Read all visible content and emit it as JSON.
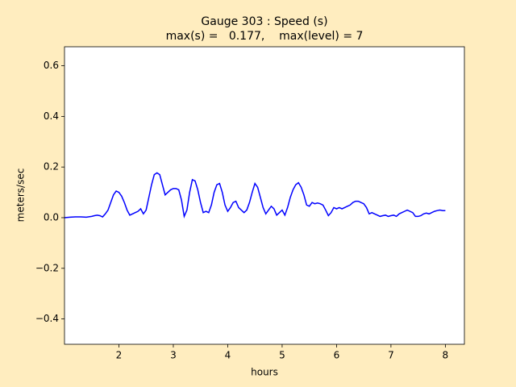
{
  "chart_data": {
    "type": "line",
    "title": "Gauge 303 : Speed (s)",
    "subtitle": "max(s) =   0.177,    max(level) = 7",
    "xlabel": "hours",
    "ylabel": "meters/sec",
    "xlim": [
      1.0,
      8.35
    ],
    "ylim": [
      -0.5,
      0.675
    ],
    "xticks": [
      2,
      3,
      4,
      5,
      6,
      7,
      8
    ],
    "yticks": [
      {
        "value": -0.4,
        "label": "−0.4"
      },
      {
        "value": -0.2,
        "label": "−0.2"
      },
      {
        "value": 0,
        "label": "0.0"
      },
      0.2,
      0.4,
      0.6
    ],
    "grid": false,
    "series": [
      {
        "name": "s",
        "color": "#0000ff",
        "x": [
          1.0,
          1.1,
          1.2,
          1.3,
          1.4,
          1.5,
          1.55,
          1.6,
          1.65,
          1.7,
          1.75,
          1.8,
          1.85,
          1.9,
          1.95,
          2.0,
          2.05,
          2.1,
          2.15,
          2.2,
          2.25,
          2.3,
          2.35,
          2.4,
          2.45,
          2.5,
          2.55,
          2.6,
          2.65,
          2.7,
          2.75,
          2.8,
          2.85,
          2.9,
          2.95,
          3.0,
          3.05,
          3.1,
          3.15,
          3.2,
          3.25,
          3.3,
          3.35,
          3.4,
          3.45,
          3.5,
          3.55,
          3.6,
          3.65,
          3.7,
          3.75,
          3.8,
          3.85,
          3.9,
          3.95,
          4.0,
          4.05,
          4.1,
          4.15,
          4.2,
          4.25,
          4.3,
          4.35,
          4.4,
          4.45,
          4.5,
          4.55,
          4.6,
          4.65,
          4.7,
          4.75,
          4.8,
          4.85,
          4.9,
          4.95,
          5.0,
          5.05,
          5.1,
          5.15,
          5.2,
          5.25,
          5.3,
          5.35,
          5.4,
          5.45,
          5.5,
          5.55,
          5.6,
          5.65,
          5.7,
          5.75,
          5.8,
          5.85,
          5.9,
          5.95,
          6.0,
          6.05,
          6.1,
          6.15,
          6.2,
          6.25,
          6.3,
          6.35,
          6.4,
          6.45,
          6.5,
          6.55,
          6.6,
          6.65,
          6.7,
          6.75,
          6.8,
          6.85,
          6.9,
          6.95,
          7.0,
          7.05,
          7.1,
          7.15,
          7.2,
          7.25,
          7.3,
          7.35,
          7.4,
          7.45,
          7.5,
          7.55,
          7.6,
          7.65,
          7.7,
          7.75,
          7.8,
          7.85,
          7.9,
          7.95,
          8.0
        ],
        "values": [
          0.0,
          0.002,
          0.003,
          0.003,
          0.002,
          0.005,
          0.008,
          0.01,
          0.008,
          0.003,
          0.015,
          0.03,
          0.06,
          0.09,
          0.105,
          0.1,
          0.085,
          0.06,
          0.03,
          0.01,
          0.015,
          0.02,
          0.025,
          0.035,
          0.015,
          0.03,
          0.08,
          0.13,
          0.17,
          0.177,
          0.17,
          0.13,
          0.09,
          0.1,
          0.11,
          0.115,
          0.115,
          0.11,
          0.07,
          0.005,
          0.03,
          0.1,
          0.15,
          0.145,
          0.11,
          0.06,
          0.02,
          0.025,
          0.02,
          0.05,
          0.1,
          0.13,
          0.135,
          0.1,
          0.05,
          0.025,
          0.04,
          0.06,
          0.065,
          0.04,
          0.03,
          0.02,
          0.03,
          0.06,
          0.1,
          0.135,
          0.12,
          0.08,
          0.04,
          0.015,
          0.03,
          0.045,
          0.035,
          0.01,
          0.02,
          0.03,
          0.01,
          0.04,
          0.08,
          0.11,
          0.13,
          0.138,
          0.12,
          0.09,
          0.05,
          0.045,
          0.06,
          0.055,
          0.058,
          0.055,
          0.05,
          0.03,
          0.008,
          0.02,
          0.04,
          0.035,
          0.04,
          0.035,
          0.04,
          0.045,
          0.05,
          0.06,
          0.065,
          0.065,
          0.06,
          0.055,
          0.04,
          0.015,
          0.02,
          0.015,
          0.01,
          0.005,
          0.008,
          0.01,
          0.005,
          0.008,
          0.01,
          0.005,
          0.015,
          0.02,
          0.025,
          0.03,
          0.025,
          0.02,
          0.005,
          0.005,
          0.008,
          0.015,
          0.018,
          0.015,
          0.02,
          0.025,
          0.028,
          0.03,
          0.028,
          0.028
        ]
      }
    ]
  }
}
